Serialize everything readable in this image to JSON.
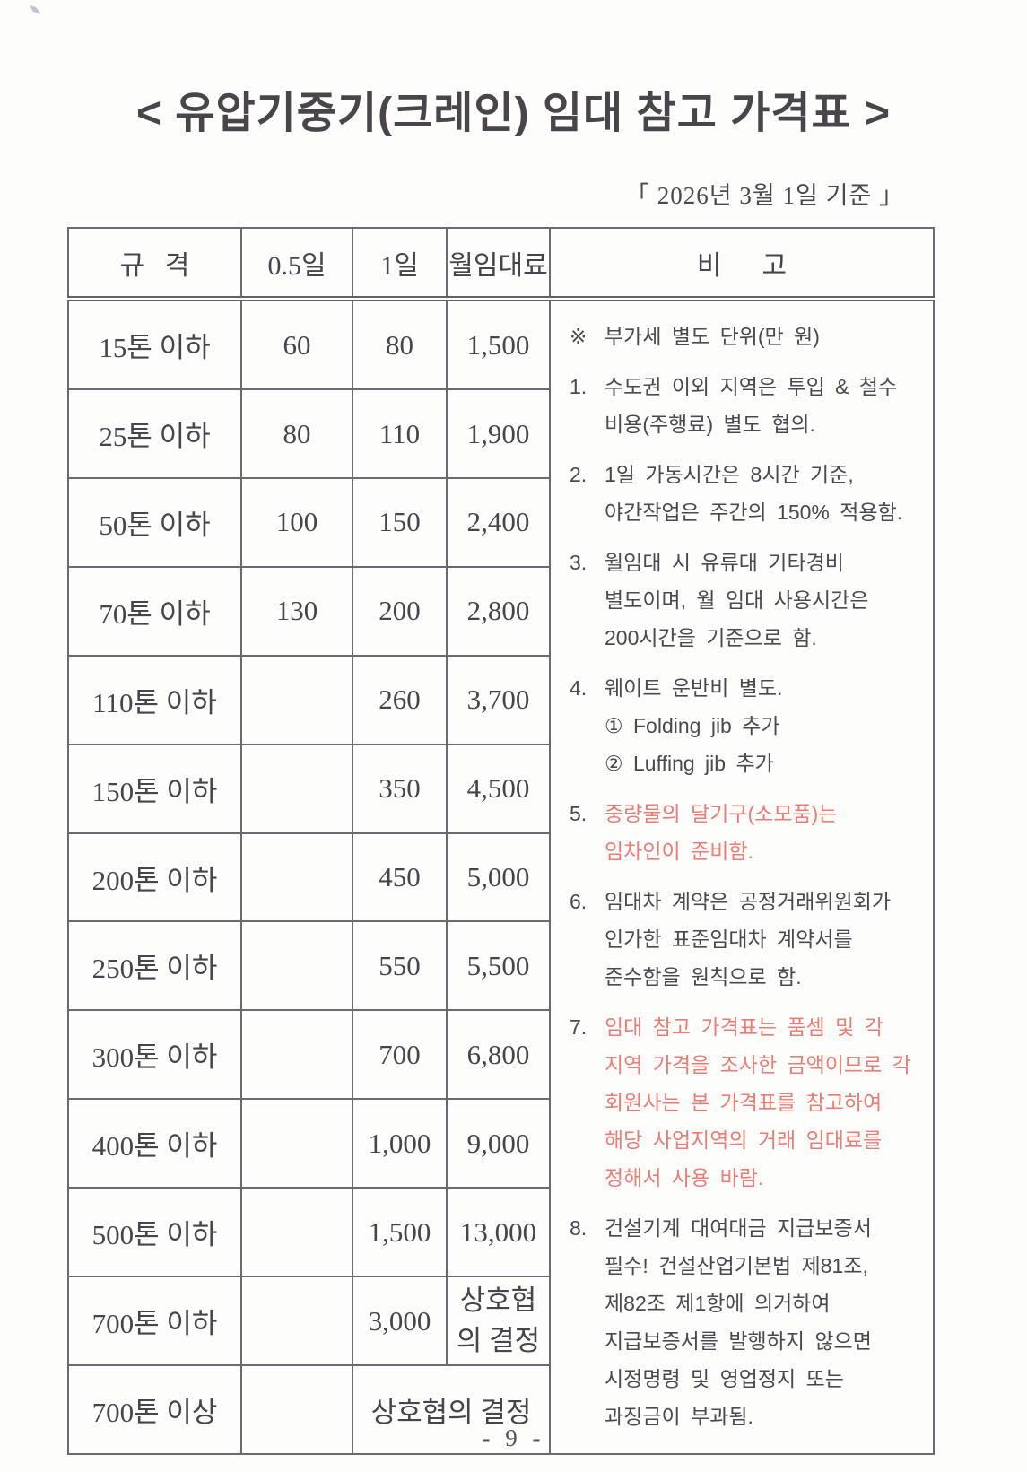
{
  "document": {
    "title": "< 유압기중기(크레인) 임대 참고 가격표 >",
    "date_reference": "「 2026년 3월 1일 기준 」",
    "page_number": "- 9 -"
  },
  "colors": {
    "text": "#47454c",
    "red_text": "#ee7c75",
    "border": "#6b6a70",
    "background": "#fdfdfc"
  },
  "table": {
    "headers": [
      "규   격",
      "0.5일",
      "1일",
      "월임대료",
      "비      고"
    ],
    "rows": [
      {
        "cells": [
          {
            "t": "15톤 이하"
          },
          {
            "t": "60"
          },
          {
            "t": "80"
          },
          {
            "t": "1,500"
          }
        ]
      },
      {
        "cells": [
          {
            "t": "25톤 이하"
          },
          {
            "t": "80"
          },
          {
            "t": "110"
          },
          {
            "t": "1,900"
          }
        ]
      },
      {
        "cells": [
          {
            "t": "50톤 이하"
          },
          {
            "t": "100"
          },
          {
            "t": "150"
          },
          {
            "t": "2,400"
          }
        ]
      },
      {
        "cells": [
          {
            "t": "70톤 이하"
          },
          {
            "t": "130"
          },
          {
            "t": "200"
          },
          {
            "t": "2,800"
          }
        ]
      },
      {
        "cells": [
          {
            "t": "110톤 이하"
          },
          {
            "t": ""
          },
          {
            "t": "260"
          },
          {
            "t": "3,700"
          }
        ]
      },
      {
        "cells": [
          {
            "t": "150톤 이하"
          },
          {
            "t": ""
          },
          {
            "t": "350"
          },
          {
            "t": "4,500"
          }
        ]
      },
      {
        "cells": [
          {
            "t": "200톤 이하"
          },
          {
            "t": ""
          },
          {
            "t": "450"
          },
          {
            "t": "5,000"
          }
        ]
      },
      {
        "cells": [
          {
            "t": "250톤 이하"
          },
          {
            "t": ""
          },
          {
            "t": "550"
          },
          {
            "t": "5,500"
          }
        ]
      },
      {
        "cells": [
          {
            "t": "300톤 이하"
          },
          {
            "t": ""
          },
          {
            "t": "700"
          },
          {
            "t": "6,800"
          }
        ]
      },
      {
        "cells": [
          {
            "t": "400톤 이하"
          },
          {
            "t": ""
          },
          {
            "t": "1,000"
          },
          {
            "t": "9,000"
          }
        ]
      },
      {
        "cells": [
          {
            "t": "500톤 이하"
          },
          {
            "t": ""
          },
          {
            "t": "1,500"
          },
          {
            "t": "13,000"
          }
        ]
      },
      {
        "cells": [
          {
            "t": "700톤 이하"
          },
          {
            "t": ""
          },
          {
            "t": "3,000"
          },
          {
            "t": "상호협의 결정",
            "cls": "wrap2"
          }
        ]
      },
      {
        "cells": [
          {
            "t": "700톤 이상"
          },
          {
            "t": ""
          },
          {
            "t": "상호협의 결정",
            "span": 2
          }
        ]
      }
    ]
  },
  "notes": [
    {
      "marker": "※",
      "red": false,
      "lines": [
        "부가세 별도 단위(만 원)"
      ]
    },
    {
      "marker": "1.",
      "red": false,
      "lines": [
        "수도권 이외 지역은 투입 & 철수",
        "비용(주행료) 별도 협의."
      ]
    },
    {
      "marker": "2.",
      "red": false,
      "lines": [
        "1일 가동시간은 8시간 기준,",
        "야간작업은 주간의 150% 적용함."
      ]
    },
    {
      "marker": "3.",
      "red": false,
      "lines": [
        "월임대 시 유류대 기타경비",
        "별도이며, 월 임대 사용시간은",
        "200시간을 기준으로 함."
      ]
    },
    {
      "marker": "4.",
      "red": false,
      "lines": [
        "웨이트 운반비 별도.",
        "① Folding jib 추가",
        "② Luffing jib 추가"
      ]
    },
    {
      "marker": "5.",
      "red": true,
      "lines": [
        "중량물의 달기구(소모품)는",
        "임차인이 준비함."
      ]
    },
    {
      "marker": "6.",
      "red": false,
      "lines": [
        "임대차 계약은 공정거래위원회가",
        "인가한 표준임대차 계약서를",
        "준수함을 원칙으로 함."
      ]
    },
    {
      "marker": "7.",
      "red": true,
      "lines": [
        "임대 참고 가격표는 품셈 및 각",
        "지역 가격을 조사한 금액이므로 각",
        "회원사는 본 가격표를 참고하여",
        "해당 사업지역의 거래 임대료를",
        "정해서 사용 바람."
      ]
    },
    {
      "marker": "8.",
      "red": false,
      "lines": [
        "건설기계 대여대금 지급보증서",
        "필수! 건설산업기본법 제81조,",
        "제82조 제1항에 의거하여",
        "지급보증서를 발행하지 않으면",
        "시정명령 및 영업정지 또는",
        "과징금이 부과됨."
      ]
    }
  ]
}
